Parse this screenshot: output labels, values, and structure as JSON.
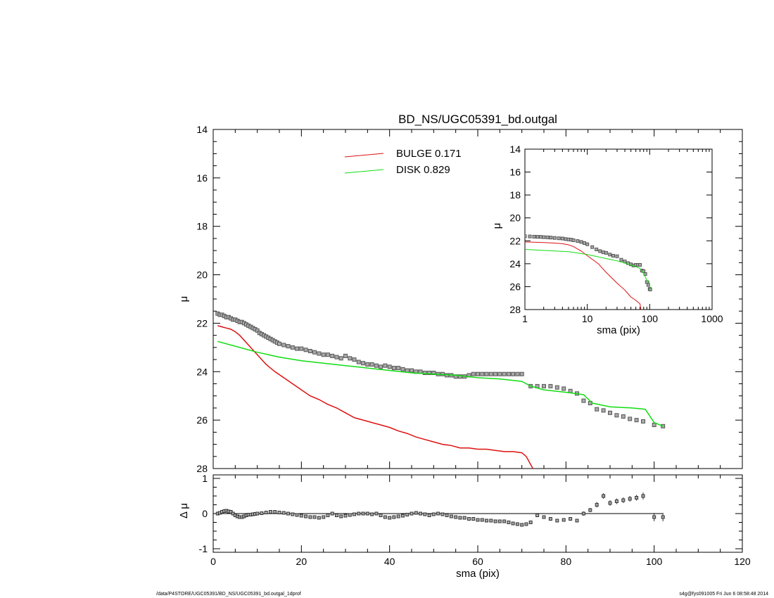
{
  "title": "BD_NS/UGC05391_bd.outgal",
  "footer": {
    "left": "/data/P4STORE/UGC05391/BD_NS/UGC05391_bd.outgal_1dprof",
    "right": "s4g@fys091005  Fri Jun  6 08:58:48 2014"
  },
  "colors": {
    "bulge": "#dd1111",
    "disk": "#11dd11",
    "data": "#555555"
  },
  "chart_data": [
    {
      "type": "scatter",
      "panel": "main",
      "title": "BD_NS/UGC05391_bd.outgal",
      "xlabel": "",
      "ylabel": "μ",
      "xlim": [
        0,
        120
      ],
      "ylim": [
        28,
        14
      ],
      "yticks": [
        14,
        16,
        18,
        20,
        22,
        24,
        26,
        28
      ],
      "ytick_labels": [
        "14",
        "16",
        "18",
        "20",
        "22",
        "24",
        "26",
        "28"
      ],
      "legend_placement": "top-center",
      "legend": [
        {
          "label": "BULGE  0.171",
          "series": "bulge"
        },
        {
          "label": "DISK  0.829",
          "series": "disk"
        }
      ],
      "series": [
        {
          "name": "BULGE  0.171",
          "kind": "line",
          "x": [
            1,
            2,
            3,
            4,
            5,
            6,
            8,
            10,
            12,
            14,
            16,
            18,
            20,
            22,
            24,
            26,
            28,
            30,
            32,
            34,
            36,
            38,
            40,
            42,
            44,
            46,
            48,
            50,
            52,
            54,
            56,
            58,
            60,
            62,
            64,
            66,
            68,
            70,
            71,
            72.5
          ],
          "y": [
            22.1,
            22.15,
            22.2,
            22.25,
            22.35,
            22.5,
            22.9,
            23.3,
            23.7,
            24.0,
            24.25,
            24.5,
            24.75,
            25.0,
            25.15,
            25.35,
            25.5,
            25.7,
            25.9,
            26.0,
            26.1,
            26.2,
            26.3,
            26.45,
            26.55,
            26.7,
            26.8,
            26.9,
            27.0,
            27.05,
            27.15,
            27.15,
            27.2,
            27.2,
            27.25,
            27.3,
            27.3,
            27.35,
            27.5,
            28.0
          ]
        },
        {
          "name": "DISK  0.829",
          "kind": "line",
          "x": [
            1,
            5,
            10,
            15,
            20,
            25,
            30,
            35,
            40,
            45,
            50,
            55,
            60,
            65,
            70,
            72,
            75,
            80,
            84,
            86,
            90,
            95,
            98,
            100,
            102
          ],
          "y": [
            22.75,
            22.95,
            23.2,
            23.4,
            23.55,
            23.65,
            23.75,
            23.85,
            23.95,
            24.05,
            24.1,
            24.15,
            24.25,
            24.3,
            24.4,
            24.6,
            24.75,
            24.85,
            24.95,
            25.3,
            25.45,
            25.5,
            25.55,
            26.1,
            26.25
          ]
        },
        {
          "name": "",
          "kind": "points",
          "x": [
            1,
            1.5,
            2,
            2.5,
            3,
            3.5,
            4,
            4.5,
            5,
            5.5,
            6,
            6.5,
            7,
            7.5,
            8,
            8.5,
            9,
            9.5,
            10,
            10.5,
            11,
            11.5,
            12,
            12.5,
            13,
            13.5,
            14,
            14.5,
            15,
            16,
            17,
            18,
            19,
            20,
            21,
            22,
            23,
            24,
            25,
            26,
            27,
            28,
            29,
            30,
            31,
            32,
            33,
            34,
            35,
            36,
            37,
            38,
            39,
            40,
            41,
            42,
            43,
            44,
            45,
            46,
            47,
            48,
            49,
            50,
            51,
            52,
            53,
            54,
            55,
            56,
            57,
            58,
            59,
            60,
            61,
            62,
            63,
            64,
            65,
            66,
            67,
            68,
            69,
            70,
            72,
            73.5,
            75,
            76.5,
            78,
            79.5,
            81,
            82.5,
            84,
            85.5,
            87,
            88.5,
            90,
            91.5,
            93,
            94.5,
            96,
            97.5,
            100,
            102
          ],
          "y": [
            21.6,
            21.65,
            21.65,
            21.7,
            21.75,
            21.75,
            21.8,
            21.85,
            21.85,
            21.9,
            21.95,
            21.95,
            22.0,
            22.05,
            22.1,
            22.15,
            22.2,
            22.25,
            22.3,
            22.4,
            22.45,
            22.5,
            22.55,
            22.6,
            22.65,
            22.7,
            22.75,
            22.8,
            22.85,
            22.9,
            22.95,
            23.0,
            23.05,
            23.05,
            23.1,
            23.15,
            23.2,
            23.25,
            23.3,
            23.3,
            23.35,
            23.4,
            23.45,
            23.35,
            23.45,
            23.5,
            23.6,
            23.65,
            23.7,
            23.7,
            23.75,
            23.8,
            23.75,
            23.8,
            23.85,
            23.85,
            23.9,
            23.95,
            23.95,
            24.0,
            24.0,
            24.05,
            24.05,
            24.05,
            24.1,
            24.1,
            24.15,
            24.15,
            24.2,
            24.2,
            24.2,
            24.15,
            24.1,
            24.1,
            24.1,
            24.1,
            24.1,
            24.1,
            24.1,
            24.1,
            24.1,
            24.1,
            24.1,
            24.1,
            24.6,
            24.6,
            24.6,
            24.6,
            24.65,
            24.7,
            24.8,
            24.9,
            25.2,
            25.3,
            25.55,
            25.6,
            25.7,
            25.8,
            25.85,
            25.95,
            26.0,
            26.05,
            26.2,
            26.25
          ]
        }
      ]
    },
    {
      "type": "scatter",
      "panel": "residual",
      "xlabel": "sma (pix)",
      "ylabel": "Δ μ",
      "xlim": [
        0,
        120
      ],
      "ylim": [
        -1.1,
        1.1
      ],
      "xticks": [
        0,
        20,
        40,
        60,
        80,
        100,
        120
      ],
      "xtick_labels": [
        "0",
        "20",
        "40",
        "60",
        "80",
        "100",
        "120"
      ],
      "yticks": [
        1,
        0,
        -1
      ],
      "ytick_labels": [
        "1",
        "0",
        "-1"
      ],
      "reference_line": 0,
      "series": [
        {
          "name": "",
          "kind": "points_with_errorbars",
          "x": [
            1,
            1.5,
            2,
            2.5,
            3,
            3.5,
            4,
            4.5,
            5,
            5.5,
            6,
            6.5,
            7,
            7.5,
            8,
            8.5,
            9,
            9.5,
            10,
            11,
            12,
            13,
            14,
            15,
            16,
            17,
            18,
            19,
            20,
            21,
            22,
            23,
            24,
            25,
            26,
            27,
            28,
            29,
            30,
            31,
            32,
            33,
            34,
            35,
            36,
            37,
            38,
            39,
            40,
            41,
            42,
            43,
            44,
            45,
            46,
            47,
            48,
            49,
            50,
            51,
            52,
            53,
            54,
            55,
            56,
            57,
            58,
            59,
            60,
            61,
            62,
            63,
            64,
            65,
            66,
            67,
            68,
            69,
            70,
            71,
            72,
            73.5,
            75,
            76.5,
            78,
            79.5,
            81,
            82.5,
            84,
            85.5,
            87,
            88.5,
            90,
            91.5,
            93,
            94.5,
            96,
            97.5,
            100,
            102
          ],
          "y": [
            0.0,
            0.02,
            0.05,
            0.07,
            0.08,
            0.06,
            0.05,
            0.0,
            -0.05,
            -0.08,
            -0.1,
            -0.1,
            -0.08,
            -0.05,
            -0.03,
            -0.03,
            -0.02,
            -0.01,
            0.0,
            0.01,
            0.03,
            0.05,
            0.05,
            0.03,
            0.02,
            0.0,
            -0.02,
            -0.04,
            -0.06,
            -0.08,
            -0.1,
            -0.1,
            -0.12,
            -0.1,
            -0.05,
            0.0,
            -0.05,
            -0.08,
            -0.06,
            -0.04,
            -0.02,
            0.0,
            0.0,
            0.0,
            -0.02,
            0.0,
            -0.05,
            -0.1,
            -0.12,
            -0.1,
            -0.08,
            -0.06,
            -0.03,
            0.0,
            0.02,
            0.0,
            -0.02,
            -0.05,
            -0.02,
            0.0,
            -0.02,
            -0.05,
            -0.08,
            -0.1,
            -0.12,
            -0.12,
            -0.15,
            -0.15,
            -0.18,
            -0.18,
            -0.2,
            -0.2,
            -0.22,
            -0.22,
            -0.22,
            -0.25,
            -0.28,
            -0.3,
            -0.32,
            -0.3,
            -0.25,
            -0.05,
            -0.1,
            -0.15,
            -0.2,
            -0.18,
            -0.15,
            -0.2,
            0.0,
            0.1,
            0.25,
            0.5,
            0.3,
            0.35,
            0.38,
            0.42,
            0.45,
            0.5,
            -0.1,
            -0.1
          ],
          "err": [
            0.02,
            0.02,
            0.02,
            0.02,
            0.02,
            0.02,
            0.02,
            0.02,
            0.02,
            0.02,
            0.02,
            0.02,
            0.02,
            0.02,
            0.02,
            0.02,
            0.02,
            0.02,
            0.02,
            0.02,
            0.02,
            0.02,
            0.02,
            0.02,
            0.02,
            0.02,
            0.02,
            0.02,
            0.02,
            0.02,
            0.02,
            0.02,
            0.02,
            0.02,
            0.02,
            0.02,
            0.02,
            0.02,
            0.02,
            0.02,
            0.02,
            0.02,
            0.02,
            0.02,
            0.02,
            0.02,
            0.03,
            0.03,
            0.03,
            0.03,
            0.03,
            0.03,
            0.03,
            0.03,
            0.03,
            0.03,
            0.03,
            0.03,
            0.03,
            0.03,
            0.03,
            0.03,
            0.03,
            0.03,
            0.03,
            0.03,
            0.03,
            0.03,
            0.04,
            0.04,
            0.04,
            0.04,
            0.04,
            0.04,
            0.04,
            0.05,
            0.05,
            0.05,
            0.05,
            0.05,
            0.05,
            0.05,
            0.05,
            0.05,
            0.05,
            0.05,
            0.05,
            0.05,
            0.06,
            0.06,
            0.08,
            0.08,
            0.08,
            0.08,
            0.08,
            0.08,
            0.08,
            0.1,
            0.12,
            0.12
          ]
        }
      ]
    },
    {
      "type": "scatter",
      "panel": "inset",
      "xlabel": "sma (pix)",
      "ylabel": "μ",
      "xscale": "log",
      "xlim": [
        1,
        1000
      ],
      "ylim": [
        28,
        14
      ],
      "xticks": [
        1,
        10,
        100,
        1000
      ],
      "xtick_labels": [
        "1",
        "10",
        "100",
        "1000"
      ],
      "yticks": [
        14,
        16,
        18,
        20,
        22,
        24,
        26,
        28
      ],
      "ytick_labels": [
        "14",
        "16",
        "18",
        "20",
        "22",
        "24",
        "26",
        "28"
      ],
      "series": [
        {
          "name": "BULGE  0.171",
          "kind": "line",
          "x": [
            1,
            2,
            3,
            4,
            5,
            6,
            8,
            10,
            15,
            20,
            30,
            40,
            50,
            60,
            70,
            72
          ],
          "y": [
            22.1,
            22.15,
            22.2,
            22.25,
            22.35,
            22.5,
            22.9,
            23.3,
            24.0,
            24.75,
            25.7,
            26.3,
            26.9,
            27.2,
            27.5,
            28.0
          ]
        },
        {
          "name": "DISK  0.829",
          "kind": "line",
          "x": [
            1,
            5,
            10,
            20,
            30,
            50,
            70,
            80,
            90,
            98,
            102
          ],
          "y": [
            22.75,
            22.95,
            23.2,
            23.55,
            23.75,
            24.1,
            24.4,
            24.85,
            25.45,
            25.55,
            26.25
          ]
        },
        {
          "name": "",
          "kind": "points",
          "x": [
            1,
            1.2,
            1.4,
            1.6,
            1.8,
            2,
            2.3,
            2.6,
            3,
            3.5,
            4,
            4.5,
            5,
            5.5,
            6,
            7,
            8,
            9,
            10,
            12,
            14,
            16,
            18,
            20,
            23,
            26,
            30,
            35,
            40,
            45,
            50,
            55,
            60,
            65,
            70,
            75,
            80,
            85,
            90,
            95,
            100,
            102
          ],
          "y": [
            21.6,
            21.62,
            21.64,
            21.65,
            21.66,
            21.68,
            21.7,
            21.72,
            21.75,
            21.78,
            21.8,
            21.85,
            21.88,
            21.9,
            21.95,
            22.02,
            22.1,
            22.2,
            22.3,
            22.55,
            22.75,
            22.9,
            23.0,
            23.05,
            23.2,
            23.3,
            23.35,
            23.65,
            23.8,
            23.95,
            24.05,
            24.15,
            24.1,
            24.1,
            24.1,
            24.6,
            24.65,
            24.9,
            25.6,
            25.85,
            26.2,
            26.25
          ]
        }
      ]
    }
  ]
}
